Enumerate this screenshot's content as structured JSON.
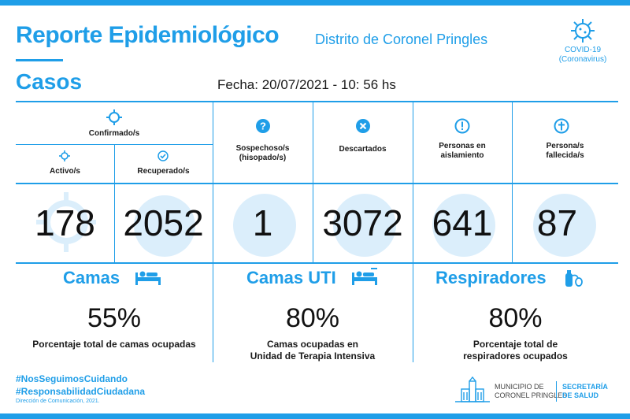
{
  "header": {
    "title": "Reporte Epidemiológico",
    "subtitle": "Distrito de Coronel Pringles",
    "section": "Casos",
    "date": "Fecha: 20/07/2021 - 10: 56 hs",
    "covid_label": "COVID-19",
    "covid_sublabel": "(Coronavirus)"
  },
  "cases": {
    "confirmed_header": "Confirmado/s",
    "active_label": "Activo/s",
    "active_value": "178",
    "recovered_label": "Recuperado/s",
    "recovered_value": "2052",
    "suspected_label_1": "Sospechoso/s",
    "suspected_label_2": "(hisopado/s)",
    "suspected_value": "1",
    "discarded_label": "Descartados",
    "discarded_value": "3072",
    "isolation_label_1": "Personas en",
    "isolation_label_2": "aislamiento",
    "isolation_value": "641",
    "deceased_label_1": "Persona/s",
    "deceased_label_2": "fallecida/s",
    "deceased_value": "87"
  },
  "resources": {
    "beds_title": "Camas",
    "beds_pct": "55%",
    "beds_desc": "Porcentaje total de camas ocupadas",
    "icu_title": "Camas UTI",
    "icu_pct": "80%",
    "icu_desc_1": "Camas ocupadas en",
    "icu_desc_2": "Unidad de Terapia Intensiva",
    "resp_title": "Respiradores",
    "resp_pct": "80%",
    "resp_desc_1": "Porcentaje total de",
    "resp_desc_2": "respiradores ocupados"
  },
  "footer": {
    "hashtag_1": "#NosSeguimosCuidando",
    "hashtag_2": "#ResponsabilidadCiudadana",
    "credit": "Dirección de Comunicación, 2021.",
    "muni_1": "MUNICIPIO DE",
    "muni_2": "CORONEL PRINGLES",
    "sec_1": "SECRETARÍA",
    "sec_2": "DE SALUD"
  },
  "colors": {
    "accent": "#1f9ee8",
    "ghost": "#dbeefb"
  }
}
